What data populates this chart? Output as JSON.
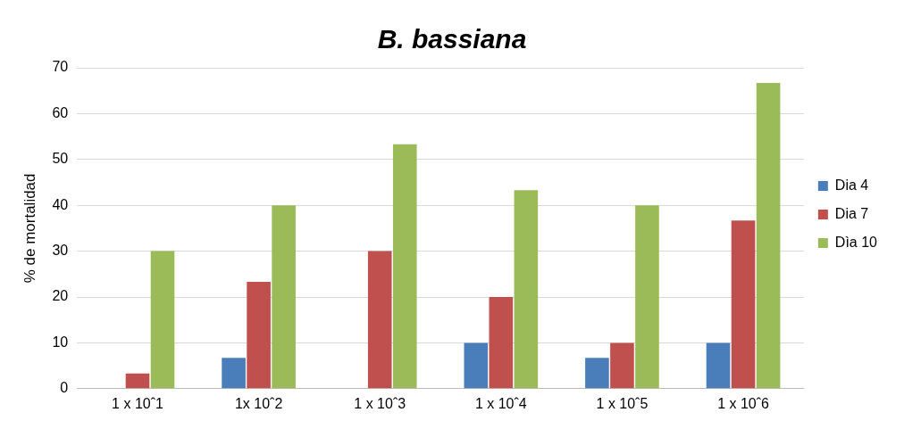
{
  "chart_data": {
    "type": "bar",
    "title": "B. bassiana",
    "ylabel": "% de mortalidad",
    "categories": [
      "1 x 10ˆ1",
      "1x 10ˆ2",
      "1 x 10ˆ3",
      "1 x 10ˆ4",
      "1 x 10ˆ5",
      "1 x 10ˆ6"
    ],
    "series": [
      {
        "name": "Dia 4",
        "color": "#4a7ebb",
        "values": [
          0,
          6.7,
          0,
          10,
          6.7,
          10
        ]
      },
      {
        "name": "Dia 7",
        "color": "#c0504d",
        "values": [
          3.3,
          23.3,
          30,
          20,
          10,
          36.7
        ]
      },
      {
        "name": "Dìa 10",
        "color": "#9bbb59",
        "values": [
          30,
          40,
          53.3,
          43.3,
          40,
          66.7
        ]
      }
    ],
    "ylim": [
      0,
      70
    ],
    "yticks": [
      0,
      10,
      20,
      30,
      40,
      50,
      60,
      70
    ],
    "grid": "y",
    "legend": "right"
  }
}
